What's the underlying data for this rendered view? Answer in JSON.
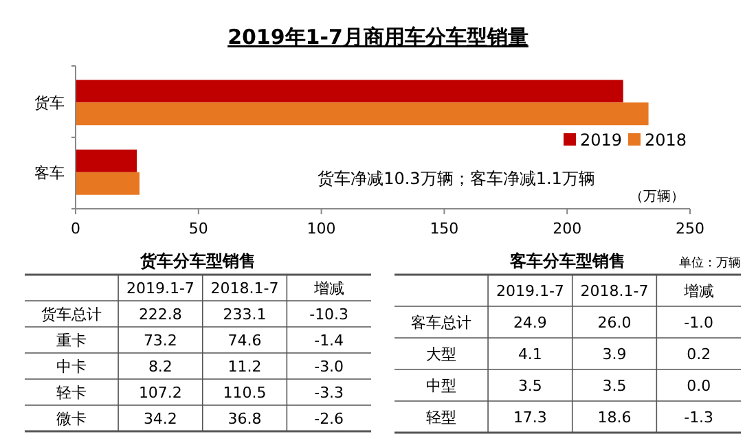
{
  "chart_data": [
    {
      "type": "bar",
      "title": "2019年1-7月商用车分车型销量",
      "orientation": "horizontal",
      "categories": [
        "货车",
        "客车"
      ],
      "series": [
        {
          "name": "2019",
          "color": "#c00000",
          "values": [
            222.8,
            24.9
          ]
        },
        {
          "name": "2018",
          "color": "#e87722",
          "values": [
            233.1,
            26.0
          ]
        }
      ],
      "xlim": [
        0,
        250
      ],
      "xticks": [
        0,
        50,
        100,
        150,
        200,
        250
      ],
      "xlabel": "（万辆）",
      "legend": "right",
      "grid": false,
      "annotations": [
        "货车净减10.3万辆；客车净减1.1万辆"
      ]
    },
    {
      "type": "other",
      "title": "货车分车型销售",
      "categories": [
        "2019.1-7",
        "2018.1-7",
        "增减"
      ],
      "y_categories": [
        "货车总计",
        "重卡",
        "中卡",
        "轻卡",
        "微卡"
      ],
      "cell_labels": [
        [
          "222.8",
          "233.1",
          "-10.3"
        ],
        [
          "73.2",
          "74.6",
          "-1.4"
        ],
        [
          "8.2",
          "11.2",
          "-3.0"
        ],
        [
          "107.2",
          "110.5",
          "-3.3"
        ],
        [
          "34.2",
          "36.8",
          "-2.6"
        ]
      ]
    },
    {
      "type": "other",
      "title": "客车分车型销售",
      "annotations": [
        "单位：万辆"
      ],
      "categories": [
        "2019.1-7",
        "2018.1-7",
        "增减"
      ],
      "y_categories": [
        "客车总计",
        "大型",
        "中型",
        "轻型"
      ],
      "cell_labels": [
        [
          "24.9",
          "26.0",
          "-1.0"
        ],
        [
          "4.1",
          "3.9",
          "0.2"
        ],
        [
          "3.5",
          "3.5",
          "0.0"
        ],
        [
          "17.3",
          "18.6",
          "-1.3"
        ]
      ]
    }
  ]
}
